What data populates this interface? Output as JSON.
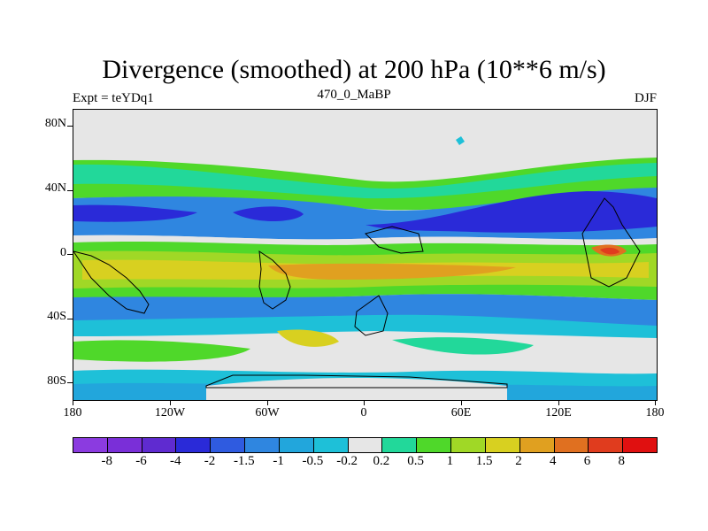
{
  "title": "Divergence (smoothed) at 200 hPa (10**6 m/s)",
  "subtitle_left": "Expt = teYDq1",
  "subtitle_center": "470_0_MaBP",
  "subtitle_right": "DJF",
  "y_axis_labels": [
    "80N",
    "40N",
    "0",
    "40S",
    "80S"
  ],
  "x_axis_labels": [
    "180",
    "120W",
    "60W",
    "0",
    "60E",
    "120E",
    "180"
  ],
  "colorbar": {
    "labels": [
      "-8",
      "-6",
      "-4",
      "-2",
      "-1.5",
      "-1",
      "-0.5",
      "-0.2",
      "0.2",
      "0.5",
      "1",
      "1.5",
      "2",
      "4",
      "6",
      "8"
    ],
    "colors": [
      "#8b3be0",
      "#7a2fd8",
      "#5f2bd0",
      "#2a2ad8",
      "#2f5be0",
      "#2f86e0",
      "#22a6dc",
      "#1ec0d8",
      "#e6e6e6",
      "#22d89a",
      "#4fd82a",
      "#a0d826",
      "#d8d020",
      "#e0a020",
      "#e07020",
      "#e03c1e",
      "#e01010"
    ]
  },
  "map_colors": {
    "background": "#e6e6e6",
    "cyan": "#1ec0d8",
    "lightblue": "#22a6dc",
    "blue": "#2f86e0",
    "darkblue": "#2a2ad8",
    "teal": "#22d89a",
    "green": "#4fd82a",
    "lime": "#a0d826",
    "yellow": "#d8d020",
    "orange": "#e0a020",
    "darkorange": "#e07020",
    "red": "#e03c1e"
  }
}
